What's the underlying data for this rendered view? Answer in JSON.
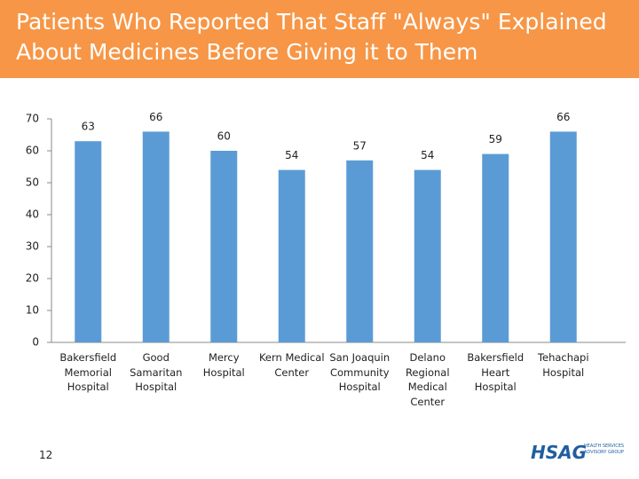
{
  "header": {
    "title": "Patients Who Reported That Staff \"Always\" Explained About Medicines Before Giving it to Them"
  },
  "chart_data": {
    "type": "bar",
    "categories": [
      "Bakersfield Memorial Hospital",
      "Good Samaritan Hospital",
      "Mercy Hospital",
      "Kern Medical Center",
      "San Joaquin Community Hospital",
      "Delano Regional Medical Center",
      "Bakersfield Heart Hospital",
      "Tehachapi Hospital"
    ],
    "values": [
      63,
      66,
      60,
      54,
      57,
      54,
      59,
      66
    ],
    "color": "#5b9bd5",
    "ylim": [
      0,
      70
    ],
    "yticks": [
      0,
      10,
      20,
      30,
      40,
      50,
      60,
      70
    ],
    "grid": false
  },
  "footer": {
    "page_number": "12",
    "logo": "HSAG",
    "logo_subtitle": "HEALTH SERVICES ADVISORY GROUP"
  }
}
